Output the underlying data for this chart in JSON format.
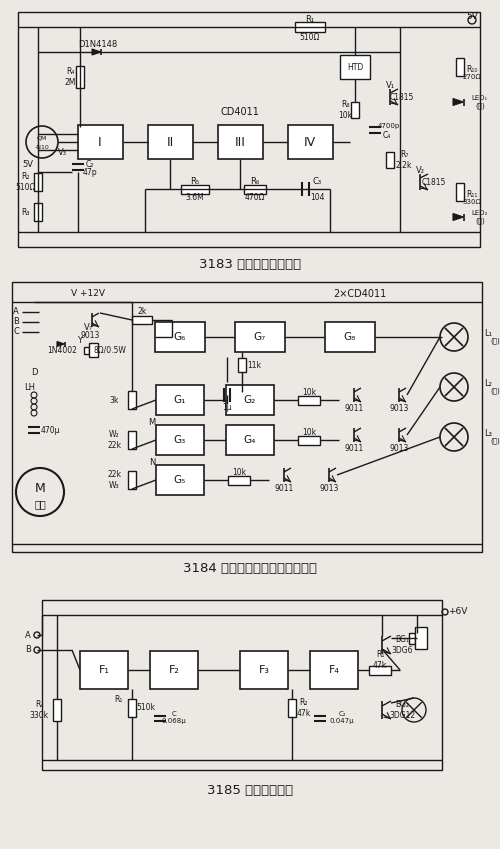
{
  "bg_color": "#ece9e4",
  "line_color": "#1a1a1a",
  "text_color": "#1a1a1a",
  "caption1": "3183 煤气泄漏报警器一",
  "caption2": "3184 电机工作状态声光警示电路",
  "caption3": "3185 多用途报警器",
  "figsize": [
    5.0,
    8.49
  ],
  "dpi": 100,
  "label_fontsize": 6.0
}
